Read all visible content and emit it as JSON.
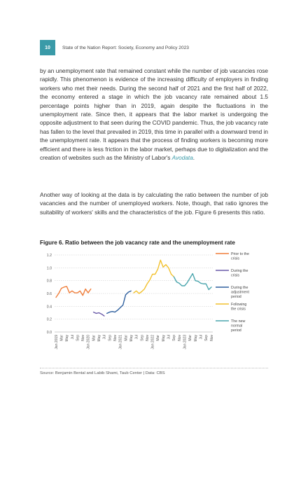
{
  "header": {
    "page_number": "10",
    "running_title": "State of the Nation Report: Society, Economy and Policy 2023"
  },
  "paragraph1": {
    "text": "by an unemployment rate that remained constant while the number of job vacancies rose rapidly. This phenomenon is evidence of the increasing difficulty of employers in finding workers who met their needs. During the second half of 2021 and the first half of 2022, the economy entered a stage in which the job vacancy rate remained about 1.5 percentage points higher than in 2019, again despite the fluctuations in the unemployment rate. Since then, it appears that the labor market is undergoing the opposite adjustment to that seen during the COVID pandemic. Thus, the job vacancy rate has fallen to the level that prevailed in 2019, this time in parallel with a downward trend in the unemployment rate. It appears that the process of finding workers is becoming more efficient and there is less friction in the labor market, perhaps due to digitalization and the creation of websites such as the Ministry of Labor's ",
    "link": "Avodata",
    "end": "."
  },
  "paragraph2": "Another way of looking at the data is by calculating the ratio between the number of job vacancies and the number of unemployed workers. Note, though, that ratio ignores the suitability of workers' skills and the characteristics of the job. Figure 6 presents this ratio.",
  "figure_title": "Figure 6. Ratio between the job vacancy rate and the unemployment rate",
  "source": "Source: Benjamin Bental and Labib Shami, Taub Center | Data: CBS",
  "chart_data": {
    "type": "line",
    "ylim": [
      0,
      1.2
    ],
    "yticks": [
      "0.0",
      "0.2",
      "0.4",
      "0.6",
      "0.8",
      "1.0",
      "1.2"
    ],
    "grid": true,
    "legend_position": "right",
    "xtick_labels": [
      "Jan 2019",
      "Mar",
      "May",
      "Jul",
      "Sep",
      "Nov",
      "Jan 2020",
      "Mar",
      "May",
      "Jul",
      "Sep",
      "Nov",
      "Jan 2021",
      "Mar",
      "May",
      "Jul",
      "Sep",
      "Nov",
      "Jan 2022",
      "Mar",
      "May",
      "Jul",
      "Sep",
      "Nov",
      "Jan 2023",
      "Mar",
      "May",
      "Jul",
      "Sep",
      "Nov"
    ],
    "series": [
      {
        "name": "Prior to the crisis",
        "color": "#f07f3c",
        "start_month": 0,
        "values": [
          0.54,
          0.6,
          0.68,
          0.7,
          0.71,
          0.61,
          0.64,
          0.61,
          0.61,
          0.64,
          0.57,
          0.67,
          0.61,
          0.67
        ]
      },
      {
        "name": "During the crisis",
        "color": "#6a5aa8",
        "start_month": 14,
        "values": [
          0.31,
          0.29,
          0.3,
          0.28,
          0.25
        ]
      },
      {
        "name": "During the adjustment period",
        "color": "#2e5f9e",
        "start_month": 19,
        "values": [
          0.29,
          0.31,
          0.32,
          0.31,
          0.34,
          0.38,
          0.42,
          0.58,
          0.62,
          0.64
        ]
      },
      {
        "name": "Following the crisis",
        "color": "#f2c12e",
        "start_month": 29,
        "values": [
          0.61,
          0.64,
          0.6,
          0.63,
          0.67,
          0.75,
          0.81,
          0.9,
          0.9,
          0.98,
          1.12,
          1.01,
          1.05,
          1.0,
          0.9,
          0.86
        ]
      },
      {
        "name": "The new normal period",
        "color": "#4aa5ad",
        "start_month": 44,
        "values": [
          0.86,
          0.78,
          0.76,
          0.72,
          0.72,
          0.77,
          0.84,
          0.91,
          0.8,
          0.79,
          0.76,
          0.75,
          0.75,
          0.66,
          0.7
        ]
      }
    ]
  }
}
